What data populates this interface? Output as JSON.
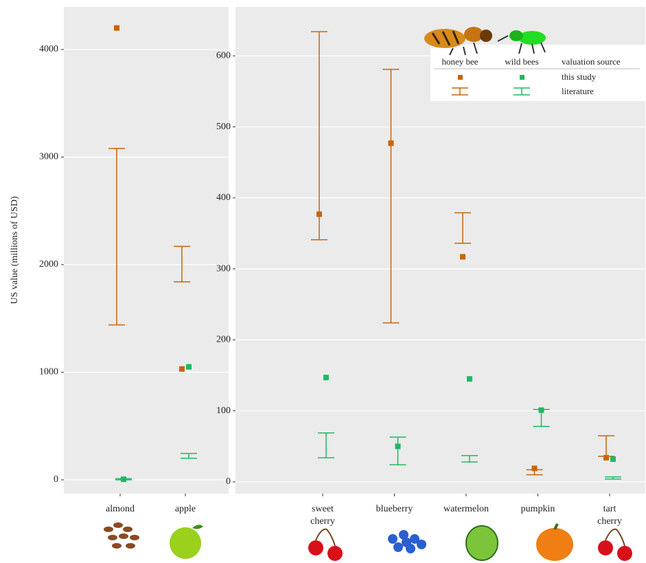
{
  "chart_data": [
    {
      "type": "dot-errorbar",
      "y_label": "US value (millions of USD)",
      "categories": [
        "almond",
        "apple"
      ],
      "ylim": [
        -128,
        4396
      ],
      "yticks": [
        0,
        1000,
        2000,
        3000,
        4000
      ],
      "grid": true,
      "series": [
        {
          "name": "honey bee",
          "color": "#c5660a",
          "values": [
            4200,
            1030
          ],
          "low": [
            1440,
            1840
          ],
          "high": [
            3080,
            2170
          ]
        },
        {
          "name": "wild bees",
          "color": "#1db964",
          "values": [
            5,
            1050
          ],
          "low": [
            0,
            200
          ],
          "high": [
            10,
            245
          ]
        }
      ]
    },
    {
      "type": "dot-errorbar",
      "categories": [
        "sweet cherry",
        "blueberry",
        "watermelon",
        "pumpkin",
        "tart cherry"
      ],
      "ylim": [
        -16.5,
        669
      ],
      "yticks": [
        0,
        100,
        200,
        300,
        400,
        500,
        600
      ],
      "grid": true,
      "series": [
        {
          "name": "honey bee",
          "color": "#c5660a",
          "values": [
            377,
            477,
            317,
            19,
            34
          ],
          "low": [
            341,
            224,
            336,
            10,
            36
          ],
          "high": [
            634,
            581,
            379,
            17,
            65
          ]
        },
        {
          "name": "wild bees",
          "color": "#1db964",
          "values": [
            147,
            50,
            145,
            101,
            32
          ],
          "low": [
            34,
            24,
            28,
            78,
            4
          ],
          "high": [
            69,
            63,
            37,
            102,
            7
          ]
        }
      ]
    }
  ],
  "legend": {
    "title": "valuation source",
    "sources": [
      "this study",
      "literature"
    ]
  }
}
